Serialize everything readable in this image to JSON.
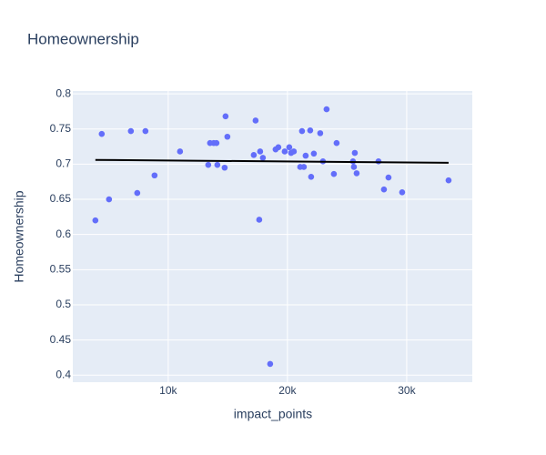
{
  "chart_data": {
    "type": "scatter",
    "title": "Homeownership",
    "x_label": "impact_points",
    "y_label": "Homeownership",
    "series": [
      {
        "color": "#636efa",
        "x": [
          3893,
          4427,
          5038,
          6870,
          7405,
          8092,
          8855,
          10992,
          13359,
          13511,
          13817,
          14046,
          14122,
          14733,
          14809,
          14962,
          17176,
          17328,
          17634,
          17710,
          17939,
          18550,
          19008,
          19237,
          19771,
          20153,
          20305,
          20534,
          21069,
          21221,
          21374,
          21527,
          21908,
          21985,
          22214,
          22748,
          22977,
          23282,
          23893,
          24122,
          25496,
          25573,
          25649,
          25802,
          27634,
          28092,
          28473,
          29618,
          33511
        ],
        "values": [
          0.62,
          0.743,
          0.65,
          0.747,
          0.659,
          0.747,
          0.684,
          0.718,
          0.699,
          0.73,
          0.73,
          0.73,
          0.699,
          0.695,
          0.768,
          0.739,
          0.713,
          0.762,
          0.621,
          0.718,
          0.709,
          0.416,
          0.721,
          0.724,
          0.718,
          0.724,
          0.716,
          0.718,
          0.696,
          0.747,
          0.696,
          0.712,
          0.748,
          0.682,
          0.715,
          0.744,
          0.704,
          0.778,
          0.686,
          0.73,
          0.704,
          0.696,
          0.716,
          0.687,
          0.704,
          0.664,
          0.681,
          0.66,
          0.677
        ]
      }
    ],
    "trendline": {
      "color": "#000000",
      "x": [
        3893,
        33511
      ],
      "values": [
        0.706,
        0.702
      ]
    },
    "xlim": [
      2000,
      35500
    ],
    "ylim": [
      0.39,
      0.804
    ],
    "xticks": [
      {
        "value": 10000,
        "label": "10k"
      },
      {
        "value": 20000,
        "label": "20k"
      },
      {
        "value": 30000,
        "label": "30k"
      }
    ],
    "yticks": [
      0.4,
      0.45,
      0.5,
      0.55,
      0.6,
      0.65,
      0.7,
      0.75,
      0.8
    ],
    "grid": true,
    "plot_bg": "#e5ecf6"
  }
}
